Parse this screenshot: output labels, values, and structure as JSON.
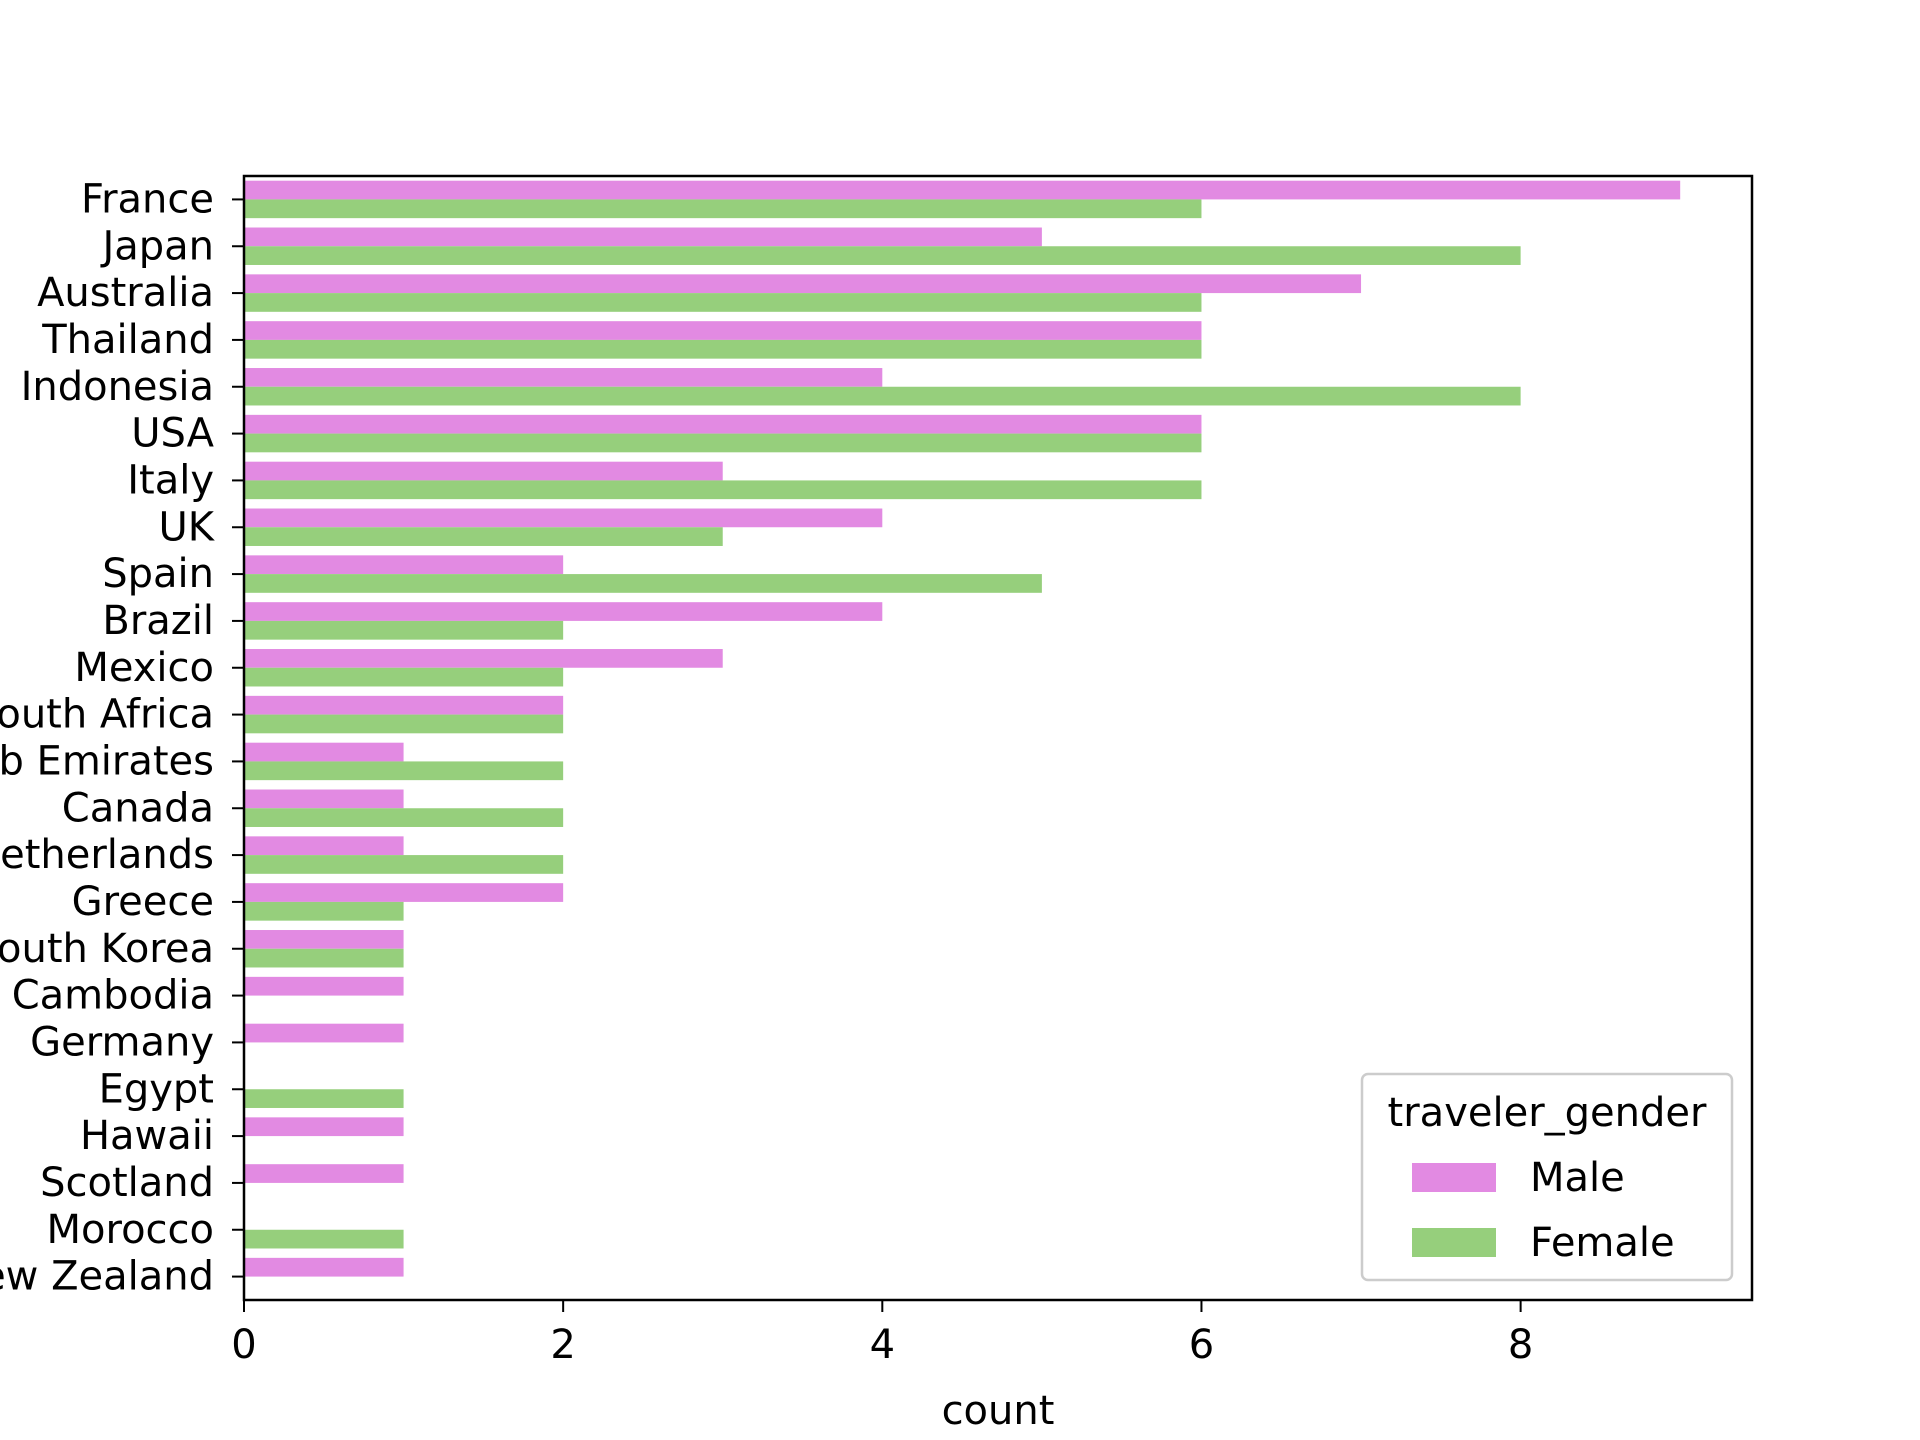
{
  "chart_data": {
    "type": "bar",
    "orientation": "horizontal",
    "categories": [
      "France",
      "Japan",
      "Australia",
      "Thailand",
      "Indonesia",
      "USA",
      "Italy",
      "UK",
      "Spain",
      "Brazil",
      "Mexico",
      "South Africa",
      "United Arab Emirates",
      "Canada",
      "Netherlands",
      "Greece",
      "South Korea",
      "Cambodia",
      "Germany",
      "Egypt",
      "Hawaii",
      "Scotland",
      "Morocco",
      "New Zealand"
    ],
    "series": [
      {
        "name": "Male",
        "color": "#e28ae2",
        "values": [
          9,
          5,
          7,
          6,
          4,
          6,
          3,
          4,
          2,
          4,
          3,
          2,
          1,
          1,
          1,
          2,
          1,
          1,
          1,
          0,
          1,
          1,
          0,
          1
        ]
      },
      {
        "name": "Female",
        "color": "#96cf7c",
        "values": [
          6,
          8,
          6,
          6,
          8,
          6,
          6,
          3,
          5,
          2,
          2,
          2,
          2,
          2,
          2,
          1,
          1,
          0,
          0,
          1,
          0,
          0,
          1,
          0
        ]
      }
    ],
    "title": "",
    "xlabel": "count",
    "ylabel": "",
    "xlim": [
      0,
      9.45
    ],
    "xticks": [
      0,
      2,
      4,
      6,
      8
    ],
    "grid": false,
    "legend": {
      "title": "traveler_gender",
      "placement": "lower-right"
    }
  }
}
